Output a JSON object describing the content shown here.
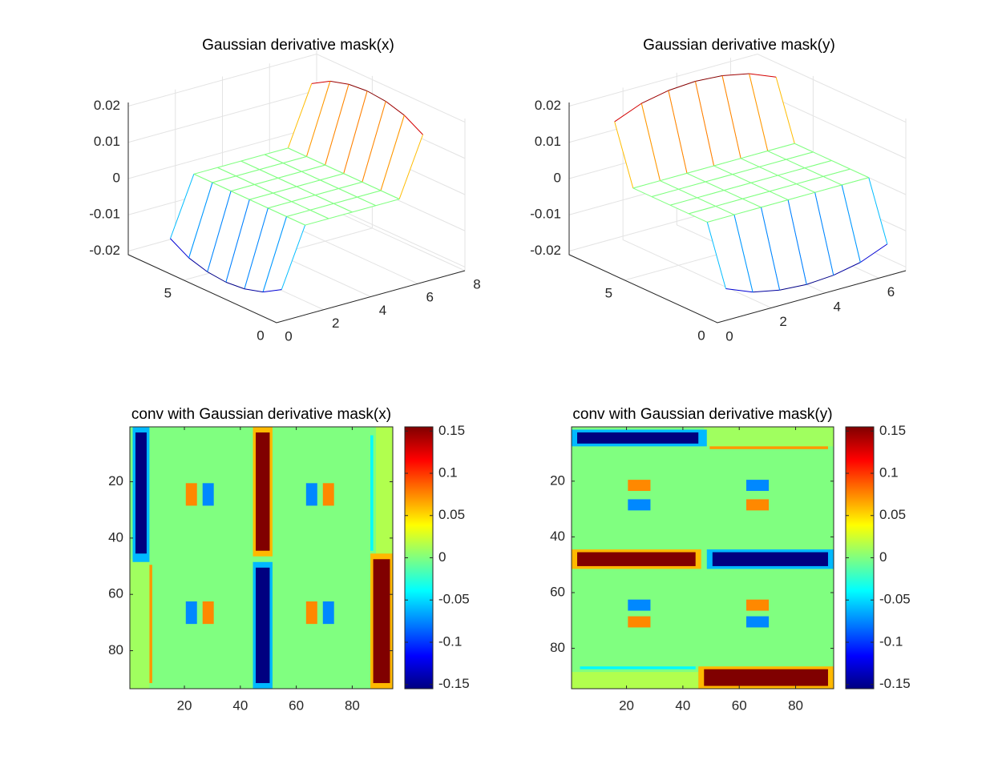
{
  "chart_data": [
    {
      "type": "mesh",
      "title": "Gaussian derivative mask(x)",
      "colormap": "jet",
      "grid": true,
      "xlim": [
        0,
        8
      ],
      "ylim": [
        0,
        8
      ],
      "zlim": [
        -0.021,
        0.021
      ],
      "xticks": [
        0,
        2,
        4,
        6,
        8
      ],
      "yticks": [
        0,
        5
      ],
      "zticks": [
        -0.02,
        -0.01,
        0,
        0.01,
        0.02
      ],
      "x": [
        1,
        2,
        3,
        4,
        5,
        6,
        7
      ],
      "y": [
        1,
        2,
        3,
        4,
        5,
        6,
        7
      ],
      "z": [
        [
          -0.016,
          0,
          0,
          0,
          0,
          0,
          0.016
        ],
        [
          -0.019,
          0,
          0,
          0,
          0,
          0,
          0.019
        ],
        [
          -0.0205,
          0,
          0,
          0,
          0,
          0,
          0.0205
        ],
        [
          -0.021,
          0,
          0,
          0,
          0,
          0,
          0.021
        ],
        [
          -0.0205,
          0,
          0,
          0,
          0,
          0,
          0.0205
        ],
        [
          -0.019,
          0,
          0,
          0,
          0,
          0,
          0.019
        ],
        [
          -0.016,
          0,
          0,
          0,
          0,
          0,
          0.016
        ]
      ]
    },
    {
      "type": "mesh",
      "title": "Gaussian derivative mask(y)",
      "colormap": "jet",
      "grid": true,
      "xlim": [
        0,
        7
      ],
      "ylim": [
        0,
        8
      ],
      "zlim": [
        -0.021,
        0.021
      ],
      "xticks": [
        0,
        2,
        4,
        6
      ],
      "yticks": [
        0,
        5
      ],
      "zticks": [
        -0.02,
        -0.01,
        0,
        0.01,
        0.02
      ],
      "x": [
        1,
        2,
        3,
        4,
        5,
        6,
        7
      ],
      "y": [
        1,
        2,
        3,
        4,
        5,
        6,
        7
      ],
      "z": [
        [
          -0.016,
          -0.019,
          -0.0205,
          -0.021,
          -0.0205,
          -0.019,
          -0.016
        ],
        [
          0,
          0,
          0,
          0,
          0,
          0,
          0
        ],
        [
          0,
          0,
          0,
          0,
          0,
          0,
          0
        ],
        [
          0,
          0,
          0,
          0,
          0,
          0,
          0
        ],
        [
          0,
          0,
          0,
          0,
          0,
          0,
          0
        ],
        [
          0,
          0,
          0,
          0,
          0,
          0,
          0
        ],
        [
          0.016,
          0.019,
          0.0205,
          0.021,
          0.0205,
          0.019,
          0.016
        ]
      ]
    },
    {
      "type": "image",
      "title": "conv with Gaussian derivative mask(x)",
      "colormap": "jet",
      "colorbar": true,
      "xlim": [
        0.5,
        94.5
      ],
      "ylim": [
        0.5,
        93.5
      ],
      "xticks": [
        20,
        40,
        60,
        80
      ],
      "yticks": [
        20,
        40,
        60,
        80
      ],
      "clim": [
        -0.155,
        0.155
      ],
      "cticks": [
        -0.15,
        -0.1,
        -0.05,
        0,
        0.05,
        0.1,
        0.15
      ],
      "cells": [
        {
          "x": [
            0.5,
            94.5
          ],
          "y": [
            0.5,
            93.5
          ],
          "value": 0
        },
        {
          "x": [
            0.5,
            7.5
          ],
          "y": [
            47.5,
            93.5
          ],
          "value": 0.01
        },
        {
          "x": [
            7.5,
            8.5
          ],
          "y": [
            49.5,
            91.5
          ],
          "value": 0.07
        },
        {
          "x": [
            1.5,
            7.5
          ],
          "y": [
            0.5,
            48.5
          ],
          "value": -0.06
        },
        {
          "x": [
            2.5,
            6.5
          ],
          "y": [
            2.5,
            45.5
          ],
          "value": -0.155
        },
        {
          "x": [
            44.5,
            51.5
          ],
          "y": [
            0.5,
            46.5
          ],
          "value": 0.06
        },
        {
          "x": [
            45.5,
            50.5
          ],
          "y": [
            2.5,
            44.5
          ],
          "value": 0.155
        },
        {
          "x": [
            44.5,
            51.5
          ],
          "y": [
            48.5,
            93.5
          ],
          "value": -0.06
        },
        {
          "x": [
            45.5,
            50.5
          ],
          "y": [
            50.5,
            91.5
          ],
          "value": -0.155
        },
        {
          "x": [
            88.5,
            94.5
          ],
          "y": [
            0.5,
            45.5
          ],
          "value": 0.015
        },
        {
          "x": [
            86.5,
            87.5
          ],
          "y": [
            3.5,
            44.5
          ],
          "value": -0.04
        },
        {
          "x": [
            86.5,
            94.5
          ],
          "y": [
            45.5,
            93.5
          ],
          "value": 0.06
        },
        {
          "x": [
            87.5,
            93.5
          ],
          "y": [
            47.5,
            91.5
          ],
          "value": 0.155
        },
        {
          "x": [
            20.5,
            24.5
          ],
          "y": [
            20.5,
            28.5
          ],
          "value": 0.075
        },
        {
          "x": [
            26.5,
            30.5
          ],
          "y": [
            20.5,
            28.5
          ],
          "value": -0.075
        },
        {
          "x": [
            20.5,
            24.5
          ],
          "y": [
            62.5,
            70.5
          ],
          "value": -0.075
        },
        {
          "x": [
            26.5,
            30.5
          ],
          "y": [
            62.5,
            70.5
          ],
          "value": 0.075
        },
        {
          "x": [
            63.5,
            67.5
          ],
          "y": [
            20.5,
            28.5
          ],
          "value": -0.075
        },
        {
          "x": [
            69.5,
            73.5
          ],
          "y": [
            20.5,
            28.5
          ],
          "value": 0.075
        },
        {
          "x": [
            63.5,
            67.5
          ],
          "y": [
            62.5,
            70.5
          ],
          "value": 0.075
        },
        {
          "x": [
            69.5,
            73.5
          ],
          "y": [
            62.5,
            70.5
          ],
          "value": -0.075
        }
      ]
    },
    {
      "type": "image",
      "title": "conv with Gaussian derivative mask(y)",
      "colormap": "jet",
      "colorbar": true,
      "xlim": [
        0.5,
        93.5
      ],
      "ylim": [
        0.5,
        94.5
      ],
      "xticks": [
        20,
        40,
        60,
        80
      ],
      "yticks": [
        20,
        40,
        60,
        80
      ],
      "clim": [
        -0.155,
        0.155
      ],
      "cticks": [
        -0.15,
        -0.1,
        -0.05,
        0,
        0.05,
        0.1,
        0.15
      ],
      "cells": [
        {
          "x": [
            0.5,
            93.5
          ],
          "y": [
            0.5,
            94.5
          ],
          "value": 0
        },
        {
          "x": [
            47.5,
            93.5
          ],
          "y": [
            0.5,
            7.5
          ],
          "value": 0.01
        },
        {
          "x": [
            49.5,
            91.5
          ],
          "y": [
            7.5,
            8.5
          ],
          "value": 0.07
        },
        {
          "x": [
            0.5,
            48.5
          ],
          "y": [
            1.5,
            7.5
          ],
          "value": -0.06
        },
        {
          "x": [
            2.5,
            45.5
          ],
          "y": [
            2.5,
            6.5
          ],
          "value": -0.155
        },
        {
          "x": [
            0.5,
            46.5
          ],
          "y": [
            44.5,
            51.5
          ],
          "value": 0.06
        },
        {
          "x": [
            2.5,
            44.5
          ],
          "y": [
            45.5,
            50.5
          ],
          "value": 0.155
        },
        {
          "x": [
            48.5,
            93.5
          ],
          "y": [
            44.5,
            51.5
          ],
          "value": -0.06
        },
        {
          "x": [
            50.5,
            91.5
          ],
          "y": [
            45.5,
            50.5
          ],
          "value": -0.155
        },
        {
          "x": [
            0.5,
            45.5
          ],
          "y": [
            88.5,
            94.5
          ],
          "value": 0.015
        },
        {
          "x": [
            3.5,
            44.5
          ],
          "y": [
            86.5,
            87.5
          ],
          "value": -0.04
        },
        {
          "x": [
            45.5,
            93.5
          ],
          "y": [
            86.5,
            94.5
          ],
          "value": 0.06
        },
        {
          "x": [
            47.5,
            91.5
          ],
          "y": [
            87.5,
            93.5
          ],
          "value": 0.155
        },
        {
          "x": [
            20.5,
            28.5
          ],
          "y": [
            19.5,
            23.5
          ],
          "value": 0.075
        },
        {
          "x": [
            20.5,
            28.5
          ],
          "y": [
            26.5,
            30.5
          ],
          "value": -0.075
        },
        {
          "x": [
            62.5,
            70.5
          ],
          "y": [
            19.5,
            23.5
          ],
          "value": -0.075
        },
        {
          "x": [
            62.5,
            70.5
          ],
          "y": [
            26.5,
            30.5
          ],
          "value": 0.075
        },
        {
          "x": [
            20.5,
            28.5
          ],
          "y": [
            62.5,
            66.5
          ],
          "value": -0.075
        },
        {
          "x": [
            20.5,
            28.5
          ],
          "y": [
            68.5,
            72.5
          ],
          "value": 0.075
        },
        {
          "x": [
            62.5,
            70.5
          ],
          "y": [
            62.5,
            66.5
          ],
          "value": 0.075
        },
        {
          "x": [
            62.5,
            70.5
          ],
          "y": [
            68.5,
            72.5
          ],
          "value": -0.075
        }
      ]
    }
  ]
}
